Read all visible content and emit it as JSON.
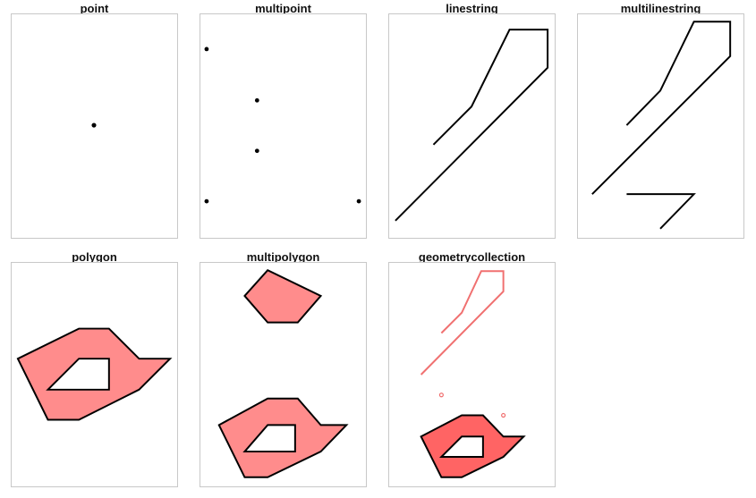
{
  "panels": [
    {
      "id": "point",
      "title": "point"
    },
    {
      "id": "multipoint",
      "title": "multipoint"
    },
    {
      "id": "linestring",
      "title": "linestring"
    },
    {
      "id": "multilinestring",
      "title": "multilinestring"
    },
    {
      "id": "polygon",
      "title": "polygon"
    },
    {
      "id": "multipolygon",
      "title": "multipolygon"
    },
    {
      "id": "geometrycollection",
      "title": "geometrycollection"
    }
  ],
  "colors": {
    "stroke": "#000000",
    "polygon_fill": "#ff8c8c",
    "collection_fill": "#ff6464",
    "collection_line": "#f07070",
    "frame_border": "#c8c8c8"
  }
}
